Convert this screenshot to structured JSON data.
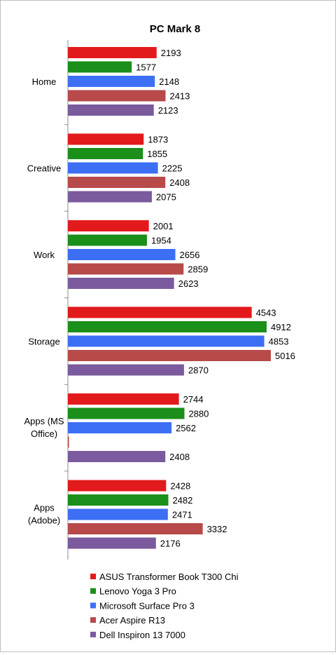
{
  "chart_data": {
    "type": "bar",
    "orientation": "horizontal",
    "title": "PC Mark 8",
    "xlabel": "",
    "ylabel": "",
    "xlim": [
      0,
      5500
    ],
    "grid": false,
    "legend_position": "bottom",
    "categories": [
      "Home",
      "Creative",
      "Work",
      "Storage",
      "Apps (MS Office)",
      "Apps (Adobe)"
    ],
    "series": [
      {
        "name": "ASUS Transformer Book T300 Chi",
        "color": "#e31a1c",
        "values": [
          2193,
          1873,
          2001,
          4543,
          2744,
          2428
        ]
      },
      {
        "name": "Lenovo Yoga 3 Pro",
        "color": "#1a8f1a",
        "values": [
          1577,
          1855,
          1954,
          4912,
          2880,
          2482
        ]
      },
      {
        "name": "Microsoft Surface Pro 3",
        "color": "#3d6ff5",
        "values": [
          2148,
          2225,
          2656,
          4853,
          2562,
          2471
        ]
      },
      {
        "name": "Acer Aspire R13",
        "color": "#b84a4a",
        "values": [
          2413,
          2408,
          2859,
          5016,
          null,
          3332
        ]
      },
      {
        "name": "Dell Inspiron 13 7000",
        "color": "#7b5a9e",
        "values": [
          2123,
          2075,
          2623,
          2870,
          2408,
          2176
        ]
      }
    ]
  }
}
